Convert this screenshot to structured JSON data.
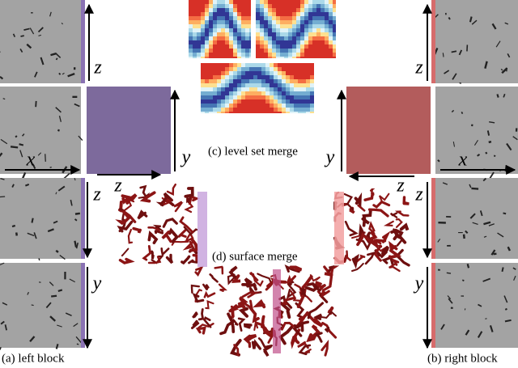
{
  "axis_labels": {
    "left": [
      "z",
      "x",
      "y",
      "z",
      "z",
      "y"
    ],
    "right": [
      "z",
      "y",
      "x",
      "z",
      "z",
      "y"
    ]
  },
  "captions": {
    "level_set_merge": "(c) level set merge",
    "surface_merge": "(d) surface merge",
    "left_block": "(a) left block",
    "right_block": "(b) right block"
  }
}
